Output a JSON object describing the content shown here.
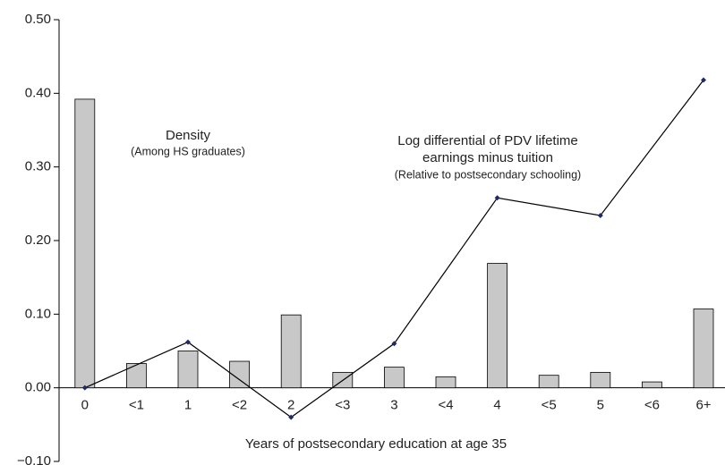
{
  "chart_data": {
    "type": "bar",
    "categories": [
      "0",
      "<1",
      "1",
      "<2",
      "2",
      "<3",
      "3",
      "<4",
      "4",
      "<5",
      "5",
      "<6",
      "6+"
    ],
    "values": [
      0.392,
      0.033,
      0.05,
      0.036,
      0.099,
      0.021,
      0.028,
      0.015,
      0.169,
      0.017,
      0.021,
      0.008,
      0.107
    ],
    "color": "#c8c8c8",
    "line": {
      "type": "line",
      "color": "#000000",
      "marker_color": "#1f2a6b",
      "categories": [
        "0",
        "1",
        "2",
        "3",
        "4",
        "5",
        "6+"
      ],
      "values": [
        0.0,
        0.062,
        -0.04,
        0.06,
        0.258,
        0.234,
        0.418
      ]
    },
    "xlabel": "Years of postsecondary education at age 35",
    "annotations": [
      "Density",
      "(Among HS graduates)",
      "Log differential of PDV lifetime",
      "earnings minus tuition",
      "(Relative to postsecondary schooling)"
    ],
    "ylim": [
      -0.1,
      0.5
    ],
    "yticks": [
      {
        "value": 0.5,
        "label": "0.50"
      },
      {
        "value": 0.4,
        "label": "0.40"
      },
      {
        "value": 0.3,
        "label": "0.30"
      },
      {
        "value": 0.2,
        "label": "0.20"
      },
      {
        "value": 0.1,
        "label": "0.10"
      },
      {
        "value": 0,
        "label": "0.00"
      },
      {
        "value": -0.1,
        "label": "−0.10"
      }
    ]
  }
}
